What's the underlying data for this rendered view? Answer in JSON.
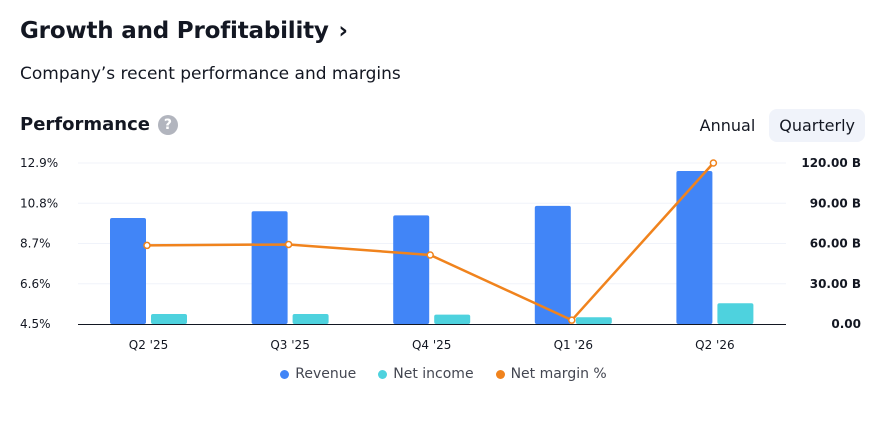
{
  "header": {
    "title": "Growth and Profitability",
    "chevron": "›",
    "subtitle": "Company’s recent performance and margins"
  },
  "performance": {
    "title": "Performance",
    "help_icon": "?",
    "toggle": [
      {
        "label": "Annual",
        "active": false
      },
      {
        "label": "Quarterly",
        "active": true
      }
    ]
  },
  "colors": {
    "revenue": "#4185f7",
    "net_income": "#4ed2de",
    "net_margin": "#f0831d"
  },
  "chart_data": {
    "type": "bar",
    "categories": [
      "Q2 '25",
      "Q3 '25",
      "Q4 '25",
      "Q1 '26",
      "Q2 '26"
    ],
    "series": [
      {
        "name": "Revenue",
        "type": "bar",
        "axis": "right",
        "values": [
          79,
          84,
          81,
          88,
          114
        ]
      },
      {
        "name": "Net income",
        "type": "bar",
        "axis": "right",
        "values": [
          7.5,
          7.5,
          7,
          5,
          15.5
        ]
      },
      {
        "name": "Net margin %",
        "type": "line",
        "axis": "left",
        "values": [
          8.6,
          8.65,
          8.1,
          4.7,
          12.9
        ]
      }
    ],
    "y_left": {
      "ticks": [
        "12.9%",
        "10.8%",
        "8.7%",
        "6.6%",
        "4.5%"
      ],
      "range": [
        4.5,
        12.9
      ]
    },
    "y_right": {
      "ticks": [
        "120.00 B",
        "90.00 B",
        "60.00 B",
        "30.00 B",
        "0.00"
      ],
      "range": [
        0,
        120
      ]
    },
    "legend": [
      "Revenue",
      "Net income",
      "Net margin %"
    ]
  }
}
